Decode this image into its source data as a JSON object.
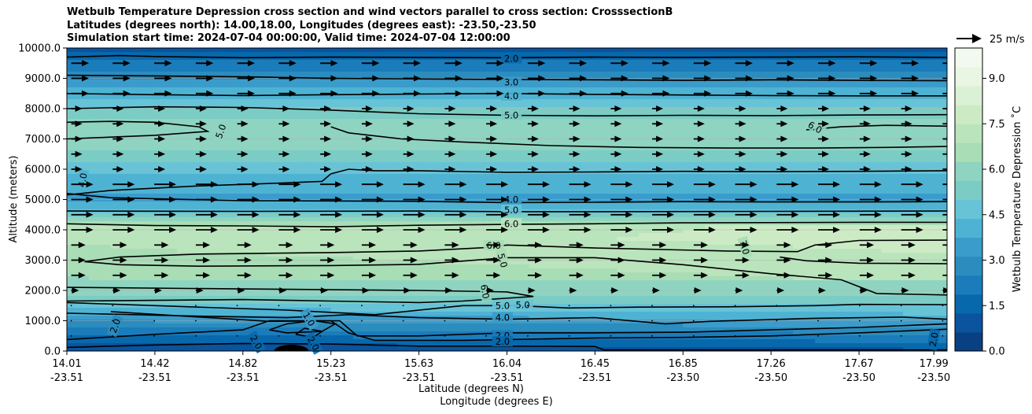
{
  "chart_data": {
    "type": "heatmap",
    "title_lines": [
      "Wetbulb Temperature Depression cross section and wind vectors parallel to cross section: CrosssectionB",
      "Latitudes (degrees north): 14.00,18.00, Longitudes (degrees east): -23.50,-23.50",
      "Simulation start time: 2024-07-04 00:00:00, Valid time: 2024-07-04 12:00:00"
    ],
    "ylabel": "Altitude (meters)",
    "xlabel_lat": "Latitude (degrees N)",
    "xlabel_lon": "Longitude (degrees E)",
    "ylim": [
      0,
      10000
    ],
    "xlim": [
      0,
      10
    ],
    "yticks": [
      "0.0",
      "1000.0",
      "2000.0",
      "3000.0",
      "4000.0",
      "5000.0",
      "6000.0",
      "7000.0",
      "8000.0",
      "9000.0",
      "10000.0"
    ],
    "ytick_values": [
      0,
      1000,
      2000,
      3000,
      4000,
      5000,
      6000,
      7000,
      8000,
      9000,
      10000
    ],
    "xticks_lat": [
      "14.01",
      "14.42",
      "14.82",
      "15.23",
      "15.63",
      "16.04",
      "16.45",
      "16.85",
      "17.26",
      "17.67",
      "17.99"
    ],
    "xticks_lon": [
      "-23.51",
      "-23.51",
      "-23.51",
      "-23.51",
      "-23.51",
      "-23.51",
      "-23.51",
      "-23.50",
      "-23.50",
      "-23.50",
      "-23.50"
    ],
    "xtick_positions": [
      0,
      1,
      2,
      3,
      4,
      5,
      6,
      7,
      8,
      9,
      9.85
    ],
    "colorbar": {
      "label": "Wetbulb Temperature Depression ˚C",
      "range": [
        0,
        10
      ],
      "ticks": [
        "0.0",
        "1.5",
        "3.0",
        "4.5",
        "6.0",
        "7.5",
        "9.0"
      ],
      "tick_values": [
        0,
        1.5,
        3,
        4.5,
        6,
        7.5,
        9
      ],
      "colors": [
        "#084081",
        "#0a539e",
        "#0868ac",
        "#1b7cbb",
        "#2b8cbe",
        "#3a9ccb",
        "#4eb3d3",
        "#67c3d6",
        "#7bccc4",
        "#8fd4c0",
        "#a8ddb5",
        "#bae4bc",
        "#ccebc5",
        "#dbf1d5",
        "#e8f6e3",
        "#f2faef"
      ]
    },
    "profile": {
      "heights": [
        0,
        300,
        700,
        1200,
        1700,
        2200,
        2700,
        3200,
        3700,
        4200,
        4600,
        5000,
        5500,
        6000,
        6500,
        7000,
        7500,
        8000,
        8500,
        9000,
        9500,
        10000
      ],
      "values": [
        0.8,
        1.6,
        2.6,
        4.0,
        5.5,
        6.1,
        6.4,
        6.7,
        7.0,
        6.9,
        4.6,
        3.6,
        3.9,
        4.5,
        5.4,
        6.1,
        6.0,
        5.0,
        4.0,
        3.1,
        2.0,
        1.0
      ]
    },
    "contour_labels": [
      "2.0",
      "3.0",
      "4.0",
      "5.0",
      "5.0",
      "6.0",
      "4.0",
      "4.0",
      "5.0",
      "6.0",
      "6.0",
      "5.0",
      "7.0",
      "6.0",
      "5.0",
      "5.0",
      "4.0",
      "2.0",
      "1.0",
      "2.0",
      "2.0",
      "2.0",
      "2.0",
      "2.0"
    ],
    "wind_key": {
      "label": "25 m/s",
      "speed": 25
    }
  }
}
